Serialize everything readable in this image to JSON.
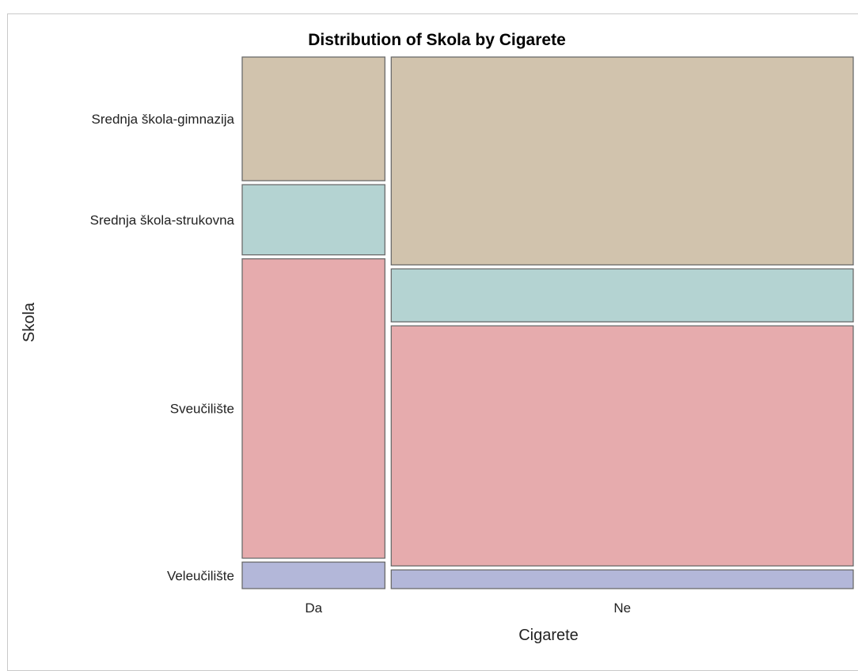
{
  "chart_data": {
    "type": "mosaic",
    "title": "Distribution of Skola by Cigarete",
    "xlabel": "Cigarete",
    "ylabel": "Skola",
    "x_categories": [
      {
        "name": "Da",
        "share": 0.236
      },
      {
        "name": "Ne",
        "share": 0.764
      }
    ],
    "y_categories": [
      "Srednja škola-gimnazija",
      "Srednja škola-strukovna",
      "Sveučilište",
      "Veleučilište"
    ],
    "y_tick_labels": {
      "from_column": "Da"
    },
    "proportions": {
      "Da": {
        "Srednja škola-gimnazija": 0.238,
        "Srednja škola-strukovna": 0.135,
        "Sveučilište": 0.576,
        "Veleučilište": 0.051
      },
      "Ne": {
        "Srednja škola-gimnazija": 0.4,
        "Srednja škola-strukovna": 0.102,
        "Sveučilište": 0.462,
        "Veleučilište": 0.036
      }
    },
    "colors": {
      "Srednja škola-gimnazija": "#d1c3ad",
      "Srednja škola-strukovna": "#b4d3d2",
      "Sveučilište": "#e6abad",
      "Veleučilište": "#b3b7d9"
    },
    "grid": false,
    "legend": "none"
  }
}
